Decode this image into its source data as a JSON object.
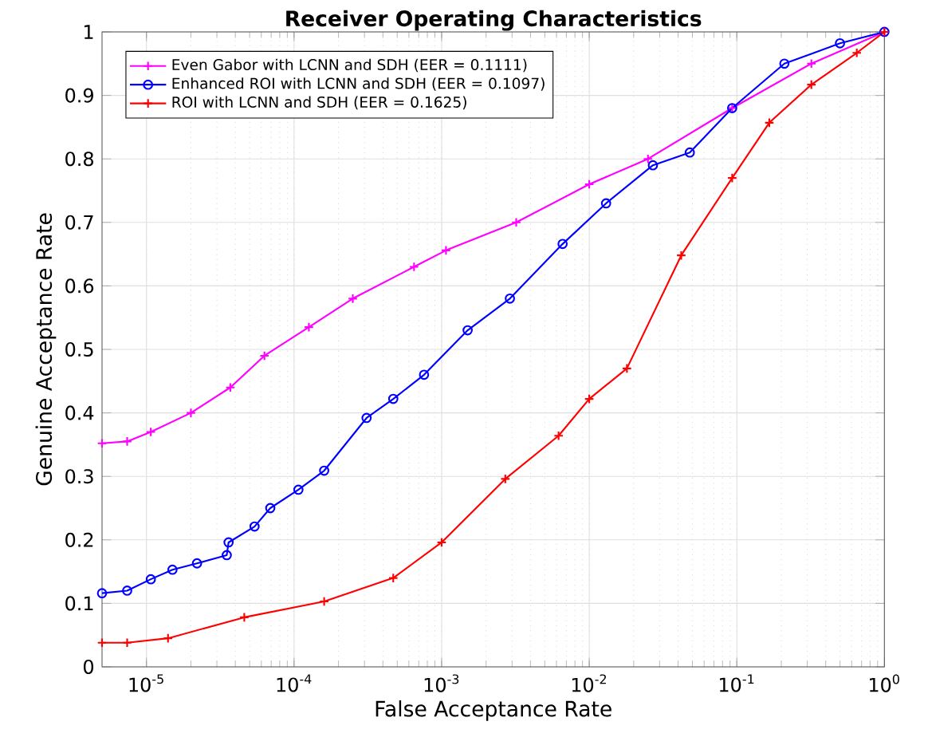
{
  "chart_data": {
    "type": "line",
    "title": "Receiver Operating Characteristics",
    "xlabel": "False Acceptance Rate",
    "ylabel": "Genuine Acceptance Rate",
    "log": "x",
    "grid": true,
    "legend": "top left",
    "xlim": [
      5e-06,
      1
    ],
    "ylim": [
      0,
      1
    ],
    "xticks": [
      {
        "value": 1e-05,
        "label": "10$^{-5}$"
      },
      {
        "value": 0.0001,
        "label": "10$^{-4}$"
      },
      {
        "value": 0.001,
        "label": "10$^{-3}$"
      },
      {
        "value": 0.01,
        "label": "10$^{-2}$"
      },
      {
        "value": 0.1,
        "label": "10$^{-1}$"
      },
      {
        "value": 1,
        "label": "10$^{0}$"
      }
    ],
    "yticks": [
      0,
      0.1,
      0.2,
      0.3,
      0.4,
      0.5,
      0.6,
      0.7,
      0.8,
      0.9,
      1
    ],
    "series": [
      {
        "name": "Even Gabor with LCNN and SDH (EER = 0.1111)",
        "color": "#ff00ff",
        "marker": "cross",
        "x": [
          5e-06,
          7.4e-06,
          1.07e-05,
          2e-05,
          3.7e-05,
          6.3e-05,
          0.000126,
          0.00025,
          0.00065,
          0.00107,
          0.0032,
          0.01,
          0.025,
          0.093,
          0.32,
          1
        ],
        "values": [
          0.352,
          0.355,
          0.37,
          0.4,
          0.44,
          0.49,
          0.535,
          0.58,
          0.63,
          0.656,
          0.7,
          0.76,
          0.8,
          0.88,
          0.95,
          1
        ]
      },
      {
        "name": "Enhanced ROI with LCNN and SDH (EER = 0.1097)",
        "color": "#0000ff",
        "marker": "circle",
        "x": [
          5e-06,
          7.4e-06,
          1.07e-05,
          1.5e-05,
          2.2e-05,
          3.5e-05,
          3.6e-05,
          5.4e-05,
          6.9e-05,
          0.000107,
          0.00016,
          0.00031,
          0.00047,
          0.00076,
          0.0015,
          0.0029,
          0.0066,
          0.013,
          0.027,
          0.048,
          0.093,
          0.21,
          0.5,
          1
        ],
        "values": [
          0.116,
          0.12,
          0.138,
          0.153,
          0.163,
          0.176,
          0.196,
          0.221,
          0.25,
          0.279,
          0.309,
          0.392,
          0.422,
          0.46,
          0.53,
          0.58,
          0.666,
          0.73,
          0.79,
          0.81,
          0.88,
          0.95,
          0.982,
          1
        ]
      },
      {
        "name": "ROI with LCNN and SDH (EER = 0.1625)",
        "color": "#ff0000",
        "marker": "cross",
        "x": [
          5e-06,
          7.4e-06,
          1.4e-05,
          4.6e-05,
          0.00016,
          0.00047,
          0.001,
          0.0027,
          0.0062,
          0.01,
          0.018,
          0.042,
          0.093,
          0.166,
          0.32,
          0.65,
          1
        ],
        "values": [
          0.038,
          0.038,
          0.045,
          0.078,
          0.103,
          0.14,
          0.196,
          0.296,
          0.364,
          0.422,
          0.47,
          0.648,
          0.77,
          0.857,
          0.917,
          0.967,
          1
        ]
      }
    ]
  }
}
